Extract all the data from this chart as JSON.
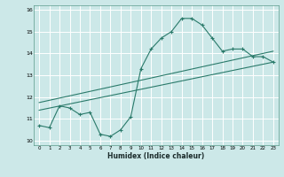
{
  "xlabel": "Humidex (Indice chaleur)",
  "bg_color": "#cce8e8",
  "grid_color": "#ffffff",
  "line_color": "#2a7a6a",
  "xlim": [
    -0.5,
    23.5
  ],
  "ylim": [
    9.8,
    16.2
  ],
  "yticks": [
    10,
    11,
    12,
    13,
    14,
    15,
    16
  ],
  "xtick_labels": [
    "0",
    "1",
    "2",
    "3",
    "4",
    "5",
    "6",
    "7",
    "8",
    "9",
    "10",
    "11",
    "12",
    "13",
    "14",
    "15",
    "16",
    "17",
    "18",
    "19",
    "20",
    "21",
    "22",
    "23"
  ],
  "main_line_y": [
    10.7,
    10.6,
    11.6,
    11.5,
    11.2,
    11.3,
    10.3,
    10.2,
    10.5,
    11.1,
    13.3,
    14.2,
    14.7,
    15.0,
    15.6,
    15.6,
    15.3,
    14.7,
    14.1,
    14.2,
    14.2,
    13.85,
    13.85,
    13.6
  ],
  "trend1_x": [
    0,
    23
  ],
  "trend1_y": [
    11.4,
    13.6
  ],
  "trend2_x": [
    0,
    23
  ],
  "trend2_y": [
    11.75,
    14.1
  ]
}
